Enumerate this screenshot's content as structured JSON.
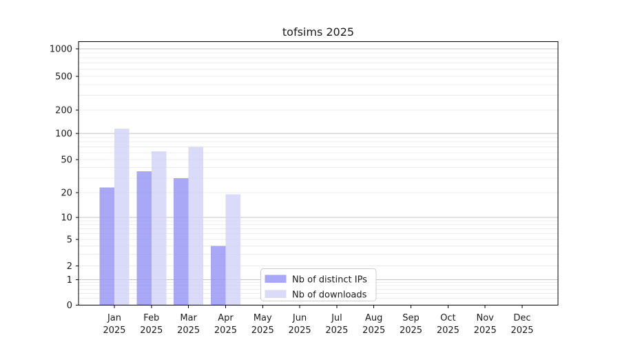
{
  "chart_data": {
    "type": "bar",
    "title": "tofsims 2025",
    "categories": [
      "Jan",
      "Feb",
      "Mar",
      "Apr",
      "May",
      "Jun",
      "Jul",
      "Aug",
      "Sep",
      "Oct",
      "Nov",
      "Dec"
    ],
    "year": "2025",
    "series": [
      {
        "name": "Nb of distinct IPs",
        "color": "#a8a8f7",
        "values": [
          23,
          36,
          30,
          4,
          0,
          0,
          0,
          0,
          0,
          0,
          0,
          0
        ]
      },
      {
        "name": "Nb of downloads",
        "color": "#dbdbf9",
        "values": [
          115,
          62,
          70,
          19,
          0,
          0,
          0,
          0,
          0,
          0,
          0,
          0
        ]
      }
    ],
    "y_ticks": [
      1000,
      500,
      200,
      100,
      50,
      20,
      10,
      5,
      2,
      1,
      0
    ],
    "y_scale": "log (symlog, 0 at baseline)",
    "ylim": [
      0,
      1200
    ],
    "xlabel": "",
    "ylabel": "",
    "grid": true,
    "legend_position": "lower center"
  },
  "colors": {
    "background": "#ffffff",
    "axis": "#000000",
    "text": "#1a1a1a",
    "major_gridline": "#c3c3c3",
    "minor_gridline": "#ececec",
    "legend_border": "#cccccc"
  }
}
